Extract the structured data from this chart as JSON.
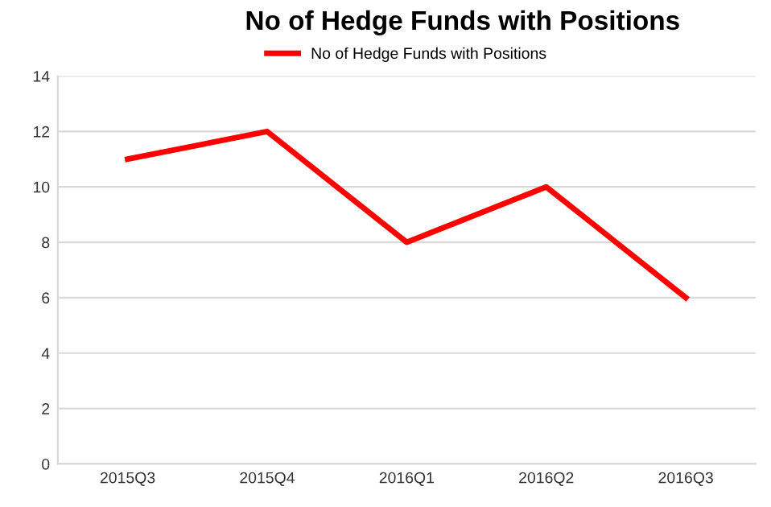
{
  "chart_data": {
    "type": "line",
    "title": "No of Hedge Funds with Positions",
    "categories": [
      "2015Q3",
      "2015Q4",
      "2016Q1",
      "2016Q2",
      "2016Q3"
    ],
    "series": [
      {
        "name": "No of Hedge Funds with Positions",
        "color": "#ff0000",
        "values": [
          11,
          12,
          8,
          10,
          6
        ]
      }
    ],
    "ylim": [
      0,
      14
    ],
    "yticks": [
      0,
      2,
      4,
      6,
      8,
      10,
      12,
      14
    ],
    "grid": "y",
    "legend": "top",
    "marker": "none",
    "line_style": "solid"
  }
}
